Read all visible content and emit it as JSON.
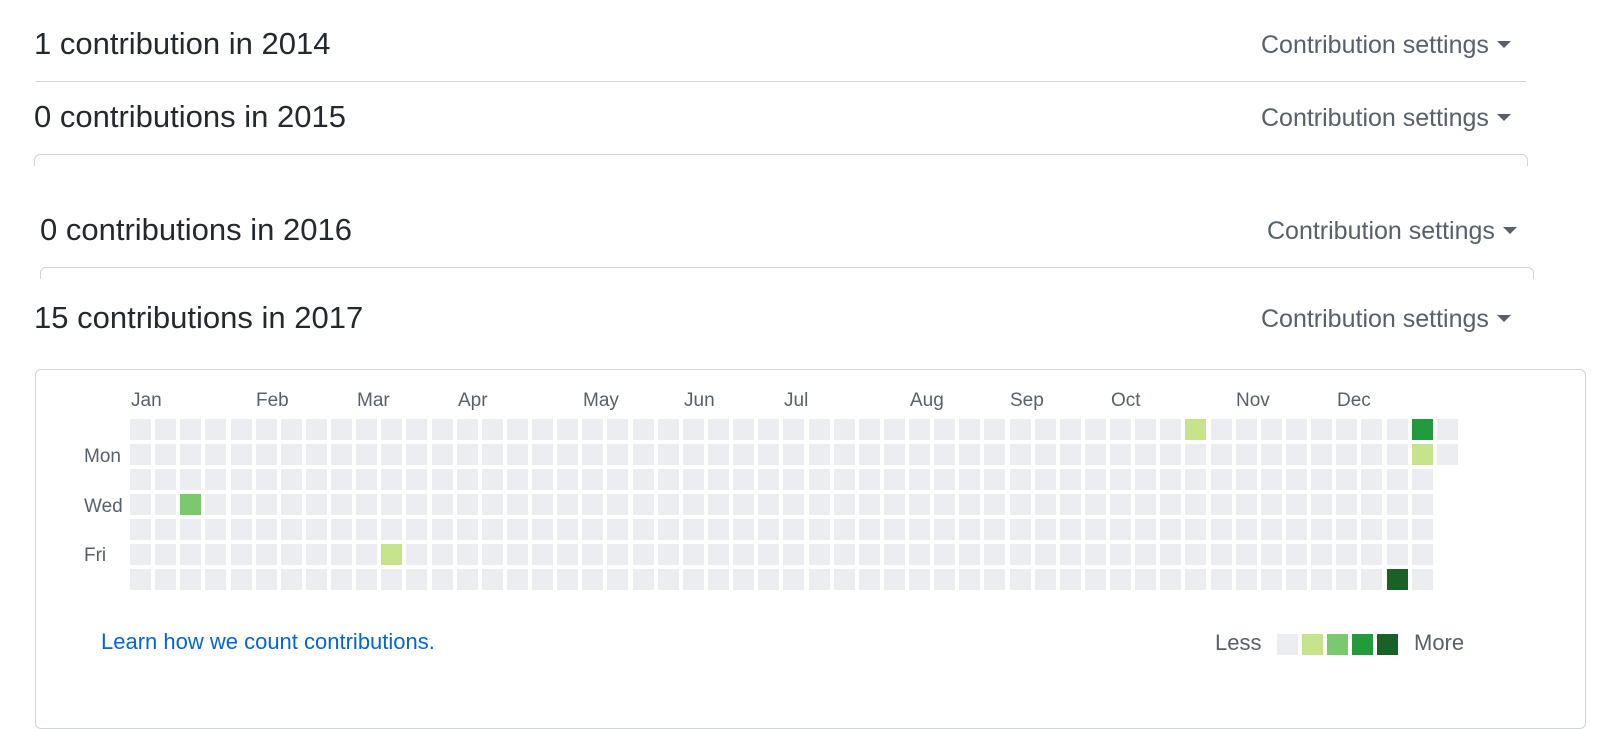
{
  "sections": [
    {
      "title": "1 contribution in 2014",
      "settings_label": "Contribution settings"
    },
    {
      "title": "0 contributions in 2015",
      "settings_label": "Contribution settings"
    },
    {
      "title": "0 contributions in 2016",
      "settings_label": "Contribution settings"
    },
    {
      "title": "15 contributions in 2017",
      "settings_label": "Contribution settings"
    }
  ],
  "graph": {
    "months": [
      "Jan",
      "Feb",
      "Mar",
      "Apr",
      "May",
      "Jun",
      "Jul",
      "Aug",
      "Sep",
      "Oct",
      "Nov",
      "Dec"
    ],
    "weekdays": [
      "Mon",
      "Wed",
      "Fri"
    ],
    "weeks": 53,
    "last_week_days": 2,
    "levels": [
      "#ebedf0",
      "#c6e48b",
      "#7bc96f",
      "#239a3b",
      "#196127"
    ],
    "contributions": [
      {
        "week": 2,
        "day": 3,
        "level": 2
      },
      {
        "week": 10,
        "day": 5,
        "level": 1
      },
      {
        "week": 42,
        "day": 0,
        "level": 1
      },
      {
        "week": 50,
        "day": 6,
        "level": 4
      },
      {
        "week": 51,
        "day": 0,
        "level": 3
      },
      {
        "week": 51,
        "day": 1,
        "level": 1
      }
    ],
    "learn_link": "Learn how we count contributions.",
    "legend_less": "Less",
    "legend_more": "More"
  }
}
